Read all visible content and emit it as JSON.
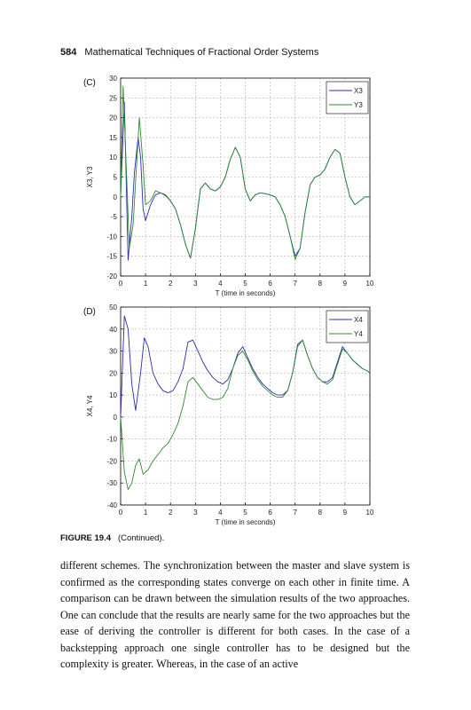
{
  "header": {
    "page_number": "584",
    "running_title": "Mathematical Techniques of Fractional Order Systems"
  },
  "chart_data": [
    {
      "type": "line",
      "panel_label": "(C)",
      "xlabel": "T (time in seconds)",
      "ylabel": "X3, Y3",
      "xlim": [
        0,
        10
      ],
      "ylim": [
        -20,
        30
      ],
      "xticks": [
        "0",
        "1",
        "2",
        "3",
        "4",
        "5",
        "6",
        "7",
        "8",
        "9",
        "10"
      ],
      "yticks": [
        "30",
        "25",
        "20",
        "15",
        "10",
        "5",
        "0",
        "-5",
        "-10",
        "-15",
        "-20"
      ],
      "grid": true,
      "legend_position": "top-right",
      "legend": [
        "X3",
        "Y3"
      ],
      "series": [
        {
          "name": "X3",
          "color": "#2b2bb0",
          "x": [
            0,
            0.15,
            0.3,
            0.45,
            0.55,
            0.7,
            0.8,
            0.9,
            1.0,
            1.2,
            1.4,
            1.6,
            1.8,
            2.0,
            2.2,
            2.4,
            2.6,
            2.8,
            3.0,
            3.2,
            3.4,
            3.6,
            3.8,
            4.0,
            4.2,
            4.4,
            4.6,
            4.8,
            5.0,
            5.2,
            5.4,
            5.6,
            5.8,
            6.0,
            6.2,
            6.4,
            6.6,
            6.8,
            7.0,
            7.2,
            7.4,
            7.6,
            7.8,
            8.0,
            8.2,
            8.4,
            8.6,
            8.8,
            9.0,
            9.2,
            9.4,
            9.6,
            9.8,
            10
          ],
          "y": [
            0,
            24,
            -16,
            -5,
            6,
            15,
            10,
            -3,
            -6,
            -2,
            0.5,
            1,
            0.5,
            -1,
            -3,
            -7,
            -12,
            -15.5,
            -8,
            2,
            3.5,
            2,
            1.5,
            2.5,
            5,
            9.5,
            12.5,
            10,
            2,
            -1,
            0.5,
            1,
            0.8,
            0.5,
            0,
            -2,
            -5,
            -10,
            -15,
            -13,
            -4,
            3,
            5,
            5.5,
            7,
            10,
            12,
            11,
            5,
            0,
            -2,
            -1,
            0,
            0
          ]
        },
        {
          "name": "Y3",
          "color": "#2e8a2e",
          "x": [
            0,
            0.1,
            0.2,
            0.35,
            0.5,
            0.6,
            0.75,
            0.9,
            1.0,
            1.2,
            1.4,
            1.6,
            1.8,
            2.0,
            2.2,
            2.4,
            2.6,
            2.8,
            3.0,
            3.2,
            3.4,
            3.6,
            3.8,
            4.0,
            4.2,
            4.4,
            4.6,
            4.8,
            5.0,
            5.2,
            5.4,
            5.6,
            5.8,
            6.0,
            6.2,
            6.4,
            6.6,
            6.8,
            7.0,
            7.2,
            7.4,
            7.6,
            7.8,
            8.0,
            8.2,
            8.4,
            8.6,
            8.8,
            9.0,
            9.2,
            9.4,
            9.6,
            9.8,
            10
          ],
          "y": [
            0,
            28,
            12,
            -13,
            -7,
            4,
            20,
            8,
            -2,
            -1,
            1.5,
            1,
            0.3,
            -1,
            -3,
            -7,
            -12,
            -15.5,
            -8,
            2,
            3.5,
            2,
            1.5,
            2.5,
            5,
            9.5,
            12.5,
            10,
            2,
            -1,
            0.5,
            1,
            0.8,
            0.5,
            0,
            -2,
            -5,
            -10,
            -15.8,
            -13,
            -4,
            3,
            5,
            5.5,
            7,
            10,
            12,
            11,
            5,
            0,
            -2,
            -1,
            0,
            0
          ]
        }
      ]
    },
    {
      "type": "line",
      "panel_label": "(D)",
      "xlabel": "T (time in seconds)",
      "ylabel": "X4, Y4",
      "xlim": [
        0,
        10
      ],
      "ylim": [
        -40,
        50
      ],
      "xticks": [
        "0",
        "1",
        "2",
        "3",
        "4",
        "5",
        "6",
        "7",
        "8",
        "9",
        "10"
      ],
      "yticks": [
        "50",
        "40",
        "30",
        "20",
        "10",
        "0",
        "-10",
        "-20",
        "-30",
        "-40"
      ],
      "grid": true,
      "legend_position": "top-right",
      "legend": [
        "X4",
        "Y4"
      ],
      "series": [
        {
          "name": "X4",
          "color": "#2b2bb0",
          "x": [
            0,
            0.15,
            0.3,
            0.45,
            0.6,
            0.8,
            0.95,
            1.1,
            1.3,
            1.5,
            1.7,
            1.9,
            2.1,
            2.3,
            2.5,
            2.7,
            2.9,
            3.1,
            3.3,
            3.5,
            3.7,
            3.9,
            4.1,
            4.3,
            4.5,
            4.7,
            4.9,
            5.1,
            5.3,
            5.5,
            5.7,
            5.9,
            6.1,
            6.3,
            6.5,
            6.7,
            6.9,
            7.1,
            7.3,
            7.5,
            7.7,
            7.9,
            8.1,
            8.3,
            8.5,
            8.7,
            8.9,
            9.1,
            9.3,
            9.5,
            9.7,
            9.9,
            10
          ],
          "y": [
            0,
            46,
            40,
            15,
            3,
            20,
            36,
            32,
            20,
            15,
            12,
            11,
            12,
            16,
            22,
            34,
            35,
            30,
            25,
            21,
            18,
            16,
            15,
            17,
            22,
            29,
            32,
            27,
            22,
            18,
            15,
            13,
            11,
            10,
            10,
            12,
            20,
            33,
            35,
            28,
            22,
            18,
            16,
            16,
            18,
            25,
            32,
            29,
            26,
            24,
            22,
            21,
            20
          ]
        },
        {
          "name": "Y4",
          "color": "#2e8a2e",
          "x": [
            0,
            0.15,
            0.3,
            0.45,
            0.6,
            0.75,
            0.9,
            1.1,
            1.3,
            1.5,
            1.7,
            1.9,
            2.1,
            2.3,
            2.5,
            2.7,
            2.9,
            3.1,
            3.3,
            3.5,
            3.7,
            3.9,
            4.1,
            4.3,
            4.5,
            4.7,
            4.9,
            5.1,
            5.3,
            5.5,
            5.7,
            5.9,
            6.1,
            6.3,
            6.5,
            6.7,
            6.9,
            7.1,
            7.3,
            7.5,
            7.7,
            7.9,
            8.1,
            8.3,
            8.5,
            8.7,
            8.9,
            9.1,
            9.3,
            9.5,
            9.7,
            9.9,
            10
          ],
          "y": [
            0,
            -25,
            -33,
            -30,
            -22,
            -19,
            -26,
            -24,
            -20,
            -17,
            -14,
            -12,
            -8,
            -3,
            5,
            16,
            18,
            15,
            12,
            9,
            8,
            8,
            9,
            13,
            22,
            28,
            30,
            26,
            21,
            17,
            14,
            12,
            10,
            9,
            9,
            12,
            20,
            32,
            35,
            28,
            22,
            18,
            16,
            15,
            17,
            24,
            31,
            29,
            26,
            24,
            22,
            21,
            20
          ]
        }
      ]
    }
  ],
  "caption": {
    "label": "FIGURE 19.4",
    "text": "(Continued)."
  },
  "body_text": "different schemes. The synchronization between the master and slave system is confirmed as the corresponding states converge on each other in finite time. A comparison can be drawn between the simulation results of the two approaches. One can conclude that the results are nearly same for the two approaches but the ease of deriving the controller is different for both cases. In the case of a backstepping approach one single controller has to be designed but the complexity is greater. Whereas, in the case of an active"
}
